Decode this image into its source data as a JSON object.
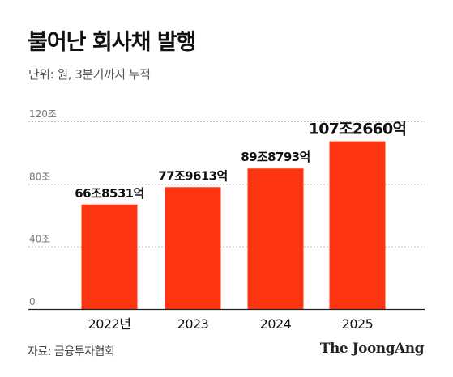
{
  "header": {
    "title": "불어난 회사채 발행",
    "subtitle": "단위: 원, 3분기까지 누적"
  },
  "footer": {
    "source": "자료: 금융투자협회",
    "brand": "The JoongAng"
  },
  "colors": {
    "bar": "#ff3512",
    "grid": "#bdbdbd",
    "tick": "#777777",
    "text": "#111111"
  },
  "chart_data": {
    "type": "bar",
    "categories": [
      "2022년",
      "2023",
      "2024",
      "2025"
    ],
    "values": [
      66.8531,
      77.9613,
      89.8793,
      107.266
    ],
    "data_labels": [
      "66조8531억",
      "77조9613억",
      "89조8793억",
      "107조2660억"
    ],
    "yticks": [
      0,
      40,
      80,
      120
    ],
    "ytick_labels": [
      "0",
      "40조",
      "80조",
      "120조"
    ],
    "ylim": [
      0,
      120
    ],
    "highlight_index": 3,
    "grid": true,
    "title": "불어난 회사채 발행",
    "xlabel": "",
    "ylabel": ""
  }
}
